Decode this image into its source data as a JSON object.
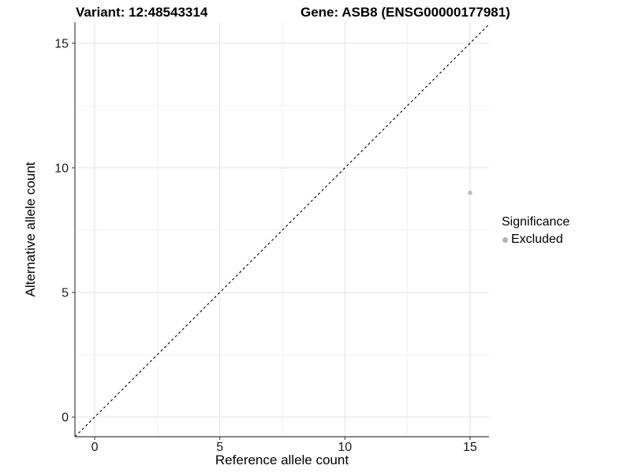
{
  "title": {
    "variant": "Variant: 12:48543314",
    "gene": "Gene: ASB8 (ENSG00000177981)"
  },
  "axes": {
    "x_label": "Reference allele count",
    "y_label": "Alternative allele count"
  },
  "legend": {
    "title": "Significance",
    "items": [
      {
        "label": "Excluded",
        "color": "#b3b3b3"
      }
    ]
  },
  "chart_data": {
    "type": "scatter",
    "title": "Variant: 12:48543314   Gene: ASB8 (ENSG00000177981)",
    "xlabel": "Reference allele count",
    "ylabel": "Alternative allele count",
    "xlim": [
      -0.79,
      15.76
    ],
    "ylim": [
      -0.79,
      15.85
    ],
    "x_ticks": [
      0,
      5,
      10,
      15
    ],
    "y_ticks": [
      0,
      5,
      10,
      15
    ],
    "x_minor_ticks": [
      2.5,
      7.5,
      12.5
    ],
    "y_minor_ticks": [
      2.5,
      7.5,
      12.5
    ],
    "grid": true,
    "legend_position": "right",
    "series": [
      {
        "name": "Excluded",
        "color": "#bfbfbf",
        "points": [
          {
            "x": 15,
            "y": 9
          }
        ]
      }
    ],
    "reference_line": {
      "type": "identity",
      "slope": 1,
      "intercept": 0,
      "style": "dashed",
      "color": "#000000"
    }
  },
  "style_colors": {
    "axis_line": "#404040",
    "tick_label": "#1a1a1a",
    "grid_major": "#e2e2e2",
    "grid_minor": "#f2f2f2",
    "background": "#ffffff"
  }
}
